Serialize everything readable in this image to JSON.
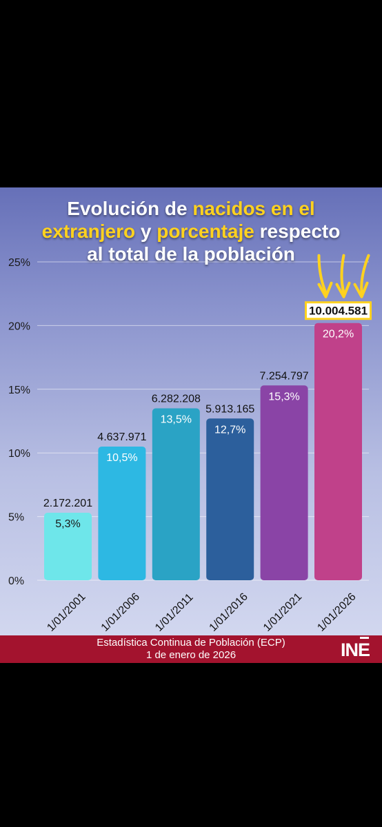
{
  "title": {
    "line1_a": "Evolución de ",
    "line1_b": "nacidos en el",
    "line2_a": "extranjero",
    "line2_b": " y ",
    "line2_c": "porcentaje",
    "line2_d": " respecto",
    "line3": "al total de la población"
  },
  "colors": {
    "highlight": "#ffd21f",
    "footer_bg": "#a3132e",
    "bars": [
      "#6ee6ea",
      "#2db8e3",
      "#2aa3c5",
      "#2c5f9c",
      "#8a44a6",
      "#c0418a"
    ]
  },
  "chart_data": {
    "type": "bar",
    "categories": [
      "1/01/2001",
      "1/01/2006",
      "1/01/2011",
      "1/01/2016",
      "1/01/2021",
      "1/01/2026"
    ],
    "values": [
      5.3,
      10.5,
      13.5,
      12.7,
      15.3,
      20.2
    ],
    "value_labels": [
      "5,3%",
      "10,5%",
      "13,5%",
      "12,7%",
      "15,3%",
      "20,2%"
    ],
    "count_labels": [
      "2.172.201",
      "4.637.971",
      "6.282.208",
      "5.913.165",
      "7.254.797",
      "10.004.581"
    ],
    "highlighted_index": 5,
    "ylim": [
      0,
      25
    ],
    "yticks": [
      0,
      5,
      10,
      15,
      20,
      25
    ],
    "ytick_labels": [
      "0%",
      "5%",
      "10%",
      "15%",
      "20%",
      "25%"
    ],
    "grid": true
  },
  "footer": {
    "line1": "Estadística Continua de Población (ECP)",
    "line2": "1 de enero de 2026",
    "logo": "INE"
  }
}
